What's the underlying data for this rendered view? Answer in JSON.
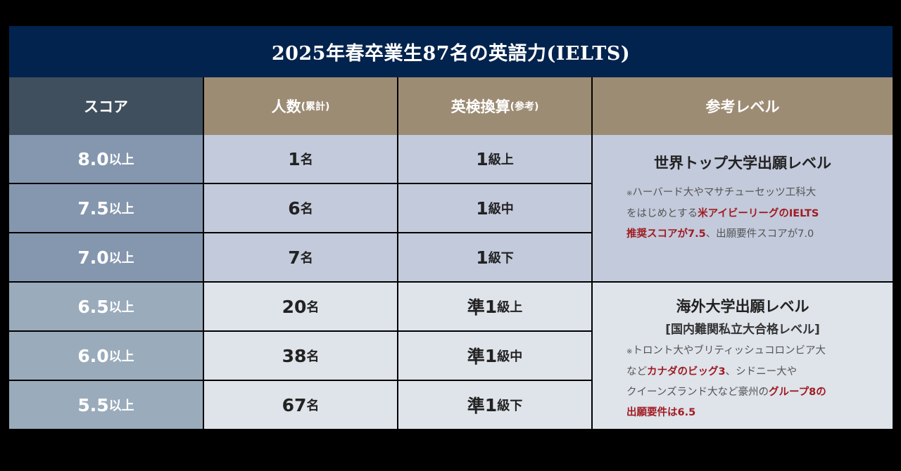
{
  "title": "2025年春卒業生87名の英語力(IELTS)",
  "headers": {
    "score": "スコア",
    "count": "人数",
    "count_note": "(累計)",
    "eiken": "英検換算",
    "eiken_note": "(参考)",
    "level": "参考レベル"
  },
  "rows": [
    {
      "score": "8.0",
      "score_suffix": "以上",
      "count": "1",
      "count_suffix": "名",
      "eiken_prefix": "",
      "eiken": "1",
      "eiken_suffix": "級上"
    },
    {
      "score": "7.5",
      "score_suffix": "以上",
      "count": "6",
      "count_suffix": "名",
      "eiken_prefix": "",
      "eiken": "1",
      "eiken_suffix": "級中"
    },
    {
      "score": "7.0",
      "score_suffix": "以上",
      "count": "7",
      "count_suffix": "名",
      "eiken_prefix": "",
      "eiken": "1",
      "eiken_suffix": "級下"
    },
    {
      "score": "6.5",
      "score_suffix": "以上",
      "count": "20",
      "count_suffix": "名",
      "eiken_prefix": "準",
      "eiken": "1",
      "eiken_suffix": "級上"
    },
    {
      "score": "6.0",
      "score_suffix": "以上",
      "count": "38",
      "count_suffix": "名",
      "eiken_prefix": "準",
      "eiken": "1",
      "eiken_suffix": "級中"
    },
    {
      "score": "5.5",
      "score_suffix": "以上",
      "count": "67",
      "count_suffix": "名",
      "eiken_prefix": "準",
      "eiken": "1",
      "eiken_suffix": "級下"
    }
  ],
  "levels": [
    {
      "head": "世界トップ大学出願レベル",
      "lines": [
        [
          {
            "t": "※",
            "k": "ast"
          },
          {
            "t": "ハーバード大やマサチューセッツ工科大",
            "k": "n"
          }
        ],
        [
          {
            "t": "をはじめとする",
            "k": "n"
          },
          {
            "t": "米アイビーリーグのIELTS",
            "k": "hl"
          }
        ],
        [
          {
            "t": "推奨スコアが7.5",
            "k": "hl"
          },
          {
            "t": "、出願要件スコアが7.0",
            "k": "n"
          }
        ]
      ]
    },
    {
      "head": "海外大学出願レベル",
      "sub": "[国内難関私立大合格レベル]",
      "lines": [
        [
          {
            "t": "※",
            "k": "ast"
          },
          {
            "t": "トロント大やブリティッシュコロンビア大",
            "k": "n"
          }
        ],
        [
          {
            "t": "など",
            "k": "n"
          },
          {
            "t": "カナダのビッグ3",
            "k": "hl"
          },
          {
            "t": "、シドニー大や",
            "k": "n"
          }
        ],
        [
          {
            "t": "クイーンズランド大など豪州の",
            "k": "n"
          },
          {
            "t": "グループ8の",
            "k": "hl"
          }
        ],
        [
          {
            "t": "出願要件は6.5",
            "k": "hl"
          }
        ]
      ]
    }
  ],
  "colors": {
    "title_bg": "#02234d",
    "score_header_bg": "#3f4f5e",
    "header_bg": "#9d8c74",
    "group1_score_bg": "#8597ae",
    "group1_bg": "#c3cadb",
    "group2_score_bg": "#9aabbb",
    "group2_bg": "#dfe3ea",
    "highlight": "#a01c22"
  }
}
